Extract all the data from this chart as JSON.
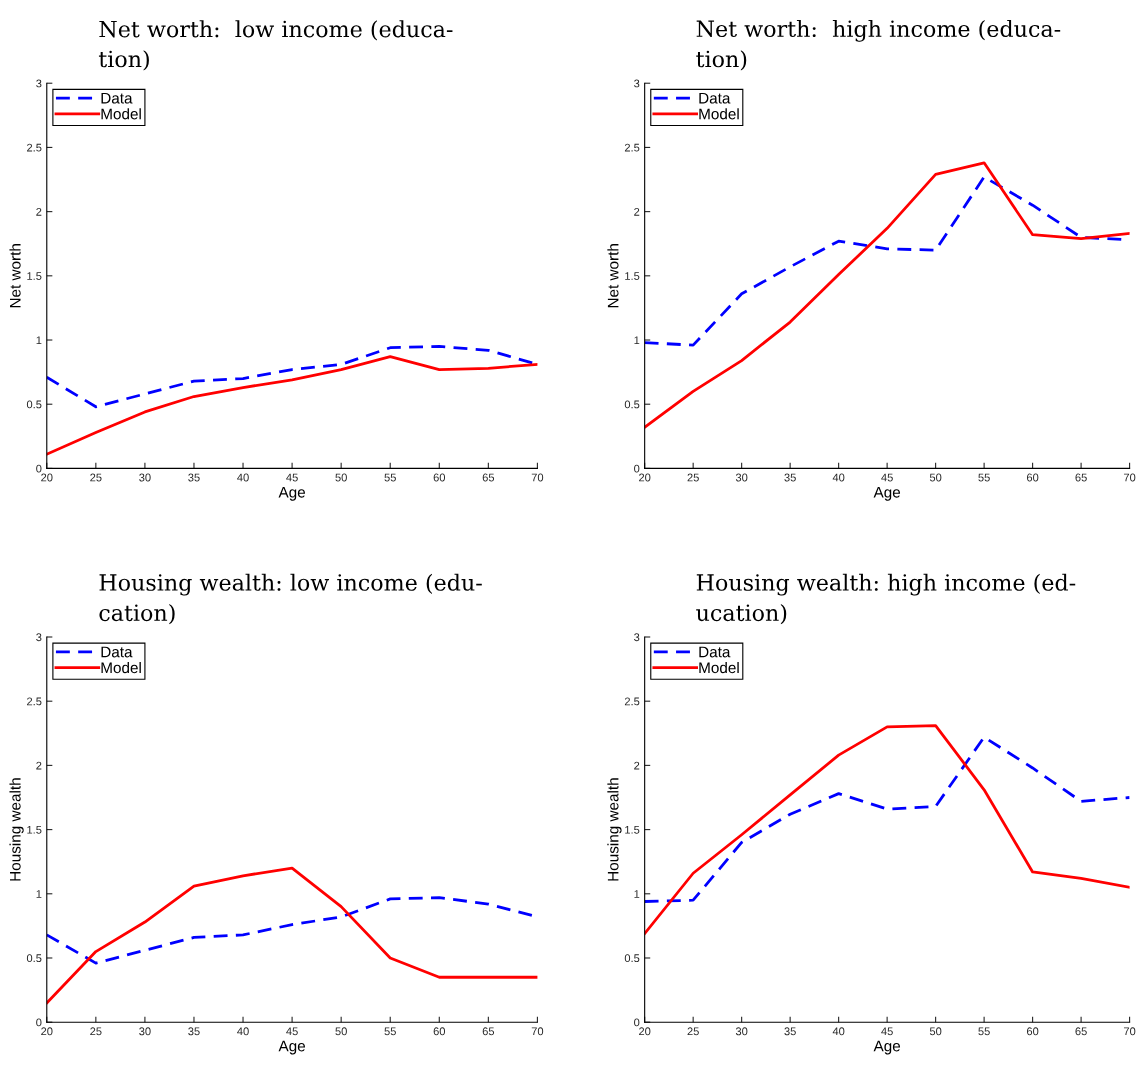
{
  "chart_data": [
    {
      "type": "line",
      "title": "Net worth:  low income (educa-\ntion)",
      "xlabel": "Age",
      "ylabel": "Net worth",
      "x": [
        20,
        25,
        30,
        35,
        40,
        45,
        50,
        55,
        60,
        65,
        70
      ],
      "xlim": [
        20,
        70
      ],
      "xticks": [
        20,
        25,
        30,
        35,
        40,
        45,
        50,
        55,
        60,
        65,
        70
      ],
      "ylim": [
        0,
        3
      ],
      "yticks": [
        0,
        0.5,
        1,
        1.5,
        2,
        2.5,
        3
      ],
      "legend": "top left",
      "grid": false,
      "series": [
        {
          "name": "Data",
          "color": "#0000ff",
          "line_style": "dashed",
          "values": [
            0.71,
            0.48,
            0.58,
            0.68,
            0.7,
            0.77,
            0.81,
            0.94,
            0.95,
            0.92,
            0.81
          ]
        },
        {
          "name": "Model",
          "color": "#ff0000",
          "line_style": "solid",
          "values": [
            0.11,
            0.28,
            0.44,
            0.56,
            0.63,
            0.69,
            0.77,
            0.87,
            0.77,
            0.78,
            0.81
          ]
        }
      ]
    },
    {
      "type": "line",
      "title": "Net worth:  high income (educa-\ntion)",
      "xlabel": "Age",
      "ylabel": "Net worth",
      "x": [
        20,
        25,
        30,
        35,
        40,
        45,
        50,
        55,
        60,
        65,
        70
      ],
      "xlim": [
        20,
        70
      ],
      "xticks": [
        20,
        25,
        30,
        35,
        40,
        45,
        50,
        55,
        60,
        65,
        70
      ],
      "ylim": [
        0,
        3
      ],
      "yticks": [
        0,
        0.5,
        1,
        1.5,
        2,
        2.5,
        3
      ],
      "legend": "top left",
      "grid": false,
      "series": [
        {
          "name": "Data",
          "color": "#0000ff",
          "line_style": "dashed",
          "values": [
            0.98,
            0.96,
            1.36,
            1.57,
            1.77,
            1.71,
            1.7,
            2.27,
            2.05,
            1.8,
            1.78
          ]
        },
        {
          "name": "Model",
          "color": "#ff0000",
          "line_style": "solid",
          "values": [
            0.32,
            0.6,
            0.84,
            1.14,
            1.51,
            1.87,
            2.29,
            2.38,
            1.82,
            1.79,
            1.83
          ]
        }
      ]
    },
    {
      "type": "line",
      "title": "Housing wealth: low income (edu-\ncation)",
      "xlabel": "Age",
      "ylabel": "Housing wealth",
      "x": [
        20,
        25,
        30,
        35,
        40,
        45,
        50,
        55,
        60,
        65,
        70
      ],
      "xlim": [
        20,
        70
      ],
      "xticks": [
        20,
        25,
        30,
        35,
        40,
        45,
        50,
        55,
        60,
        65,
        70
      ],
      "ylim": [
        0,
        3
      ],
      "yticks": [
        0,
        0.5,
        1,
        1.5,
        2,
        2.5,
        3
      ],
      "legend": "top left",
      "grid": false,
      "series": [
        {
          "name": "Data",
          "color": "#0000ff",
          "line_style": "dashed",
          "values": [
            0.68,
            0.46,
            0.56,
            0.66,
            0.68,
            0.76,
            0.82,
            0.96,
            0.97,
            0.92,
            0.82
          ]
        },
        {
          "name": "Model",
          "color": "#ff0000",
          "line_style": "solid",
          "values": [
            0.15,
            0.55,
            0.78,
            1.06,
            1.14,
            1.2,
            0.9,
            0.5,
            0.35,
            0.35,
            0.35
          ]
        }
      ]
    },
    {
      "type": "line",
      "title": "Housing wealth: high income (ed-\nucation)",
      "xlabel": "Age",
      "ylabel": "Housing wealth",
      "x": [
        20,
        25,
        30,
        35,
        40,
        45,
        50,
        55,
        60,
        65,
        70
      ],
      "xlim": [
        20,
        70
      ],
      "xticks": [
        20,
        25,
        30,
        35,
        40,
        45,
        50,
        55,
        60,
        65,
        70
      ],
      "ylim": [
        0,
        3
      ],
      "yticks": [
        0,
        0.5,
        1,
        1.5,
        2,
        2.5,
        3
      ],
      "legend": "top left",
      "grid": false,
      "series": [
        {
          "name": "Data",
          "color": "#0000ff",
          "line_style": "dashed",
          "values": [
            0.94,
            0.95,
            1.4,
            1.62,
            1.78,
            1.66,
            1.68,
            2.22,
            1.98,
            1.72,
            1.75
          ]
        },
        {
          "name": "Model",
          "color": "#ff0000",
          "line_style": "solid",
          "values": [
            0.69,
            1.16,
            1.46,
            1.77,
            2.08,
            2.3,
            2.31,
            1.81,
            1.17,
            1.12,
            1.05
          ]
        }
      ]
    }
  ]
}
